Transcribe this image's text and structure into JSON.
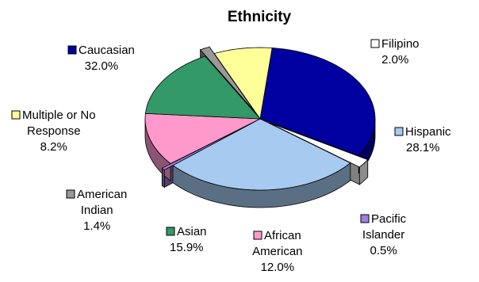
{
  "chart_data": {
    "type": "pie",
    "title": "Ethnicity",
    "slices": [
      {
        "name": "Caucasian",
        "value_label": "32.0%",
        "value": 32.0,
        "color": "#0000A0"
      },
      {
        "name": "Filipino",
        "value_label": "2.0%",
        "value": 2.0,
        "color": "#FFFFFF"
      },
      {
        "name": "Hispanic",
        "value_label": "28.1%",
        "value": 28.1,
        "color": "#A6CAF0"
      },
      {
        "name": "Pacific Islander",
        "value_label": "0.5%",
        "value": 0.5,
        "color": "#A080E0"
      },
      {
        "name": "African American",
        "value_label": "12.0%",
        "value": 12.0,
        "color": "#FF99CC"
      },
      {
        "name": "Asian",
        "value_label": "15.9%",
        "value": 15.9,
        "color": "#339966"
      },
      {
        "name": "American Indian",
        "value_label": "1.4%",
        "value": 1.4,
        "color": "#999999"
      },
      {
        "name": "Multiple or No Response",
        "value_label": "8.2%",
        "value": 8.2,
        "color": "#FFFF99"
      }
    ],
    "exploded": [
      "Filipino",
      "Pacific Islander",
      "American Indian"
    ],
    "legend": "none",
    "labels": "outside-with-color-key"
  }
}
